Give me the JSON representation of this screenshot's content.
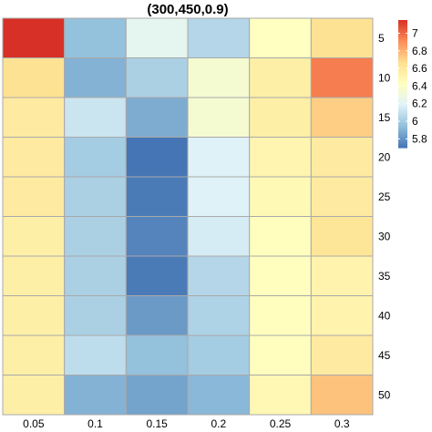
{
  "chart_data": {
    "type": "heatmap",
    "title": "(300,450,0.9)",
    "columns": [
      "0.05",
      "0.1",
      "0.15",
      "0.2",
      "0.25",
      "0.3"
    ],
    "rows": [
      "5",
      "10",
      "15",
      "20",
      "25",
      "30",
      "35",
      "40",
      "45",
      "50"
    ],
    "values": [
      [
        7.15,
        5.95,
        6.22,
        6.05,
        6.42,
        6.65
      ],
      [
        6.65,
        5.9,
        6.02,
        6.35,
        6.55,
        6.95
      ],
      [
        6.58,
        6.12,
        5.88,
        6.35,
        6.55,
        6.72
      ],
      [
        6.58,
        6.0,
        5.68,
        6.18,
        6.5,
        6.58
      ],
      [
        6.58,
        6.02,
        5.72,
        6.18,
        6.47,
        6.58
      ],
      [
        6.55,
        6.02,
        5.75,
        6.15,
        6.43,
        6.62
      ],
      [
        6.55,
        6.02,
        5.72,
        6.05,
        6.43,
        6.52
      ],
      [
        6.55,
        6.02,
        5.82,
        6.03,
        6.43,
        6.52
      ],
      [
        6.55,
        6.08,
        5.95,
        6.0,
        6.43,
        6.58
      ],
      [
        6.55,
        5.9,
        5.85,
        5.92,
        6.48,
        6.75
      ]
    ],
    "color_scale": {
      "min": 5.7,
      "max": 7.15,
      "colors": [
        "#4575b4",
        "#91bfdb",
        "#e0f3f8",
        "#ffffbf",
        "#fee090",
        "#fc8d59",
        "#d73027"
      ]
    },
    "legend_ticks": [
      "7",
      "6.8",
      "6.6",
      "6.4",
      "6.2",
      "6",
      "5.8"
    ],
    "legend_tick_values": [
      7,
      6.8,
      6.6,
      6.4,
      6.2,
      6,
      5.8
    ],
    "legend_placement": "right",
    "cell_border_color": "#a9a9a9"
  }
}
